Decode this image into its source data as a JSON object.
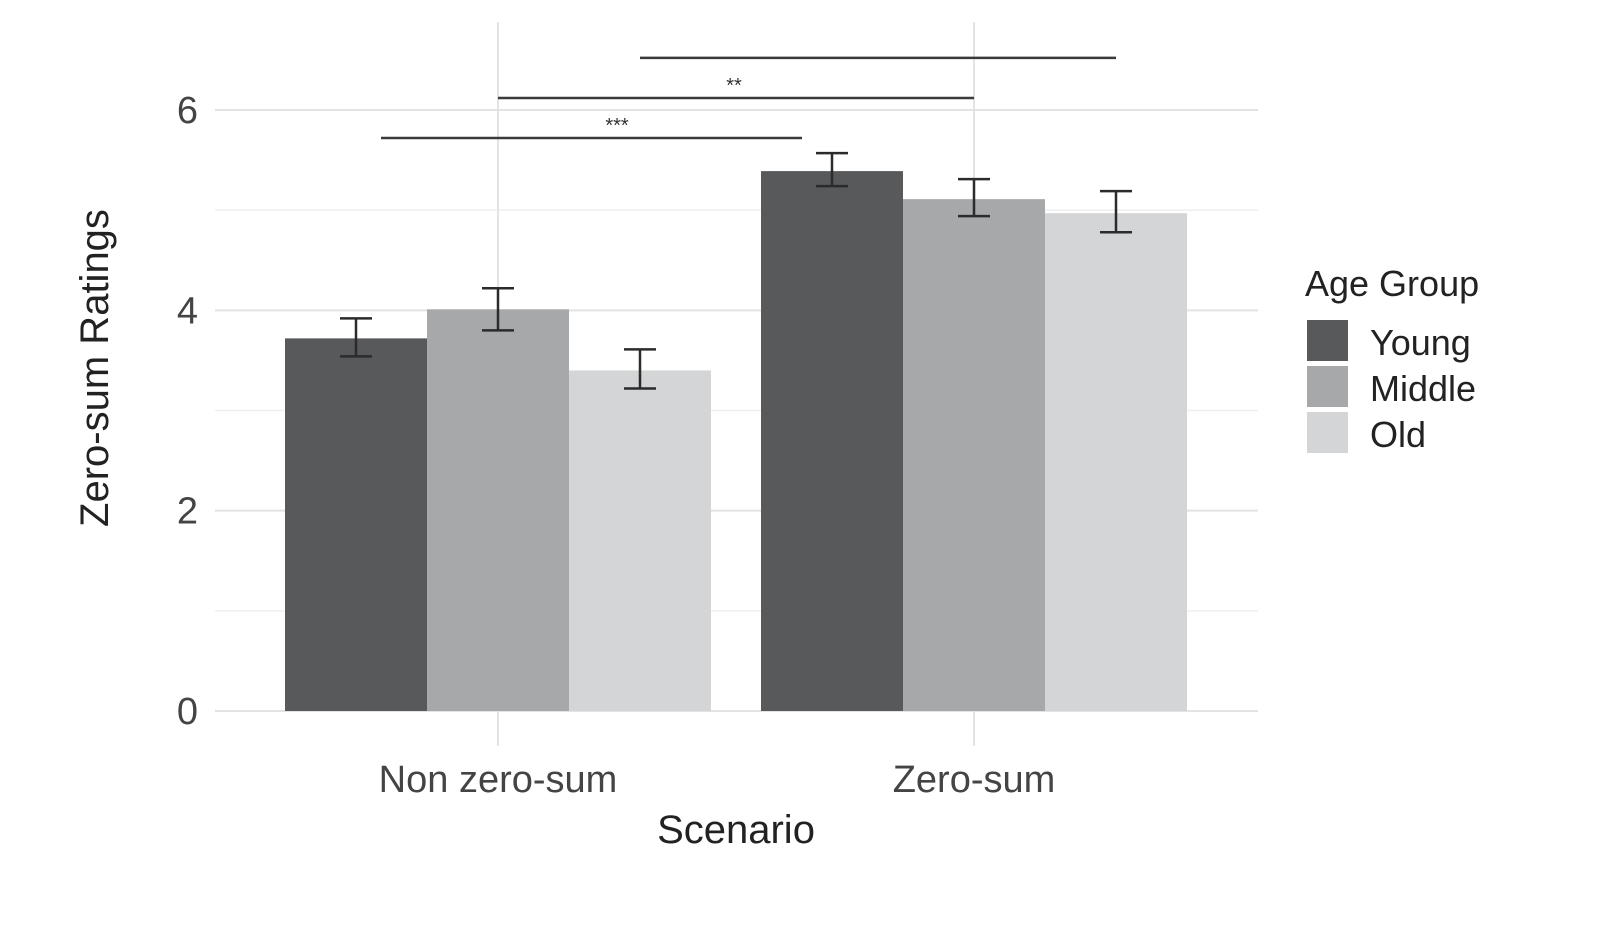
{
  "chart_data": {
    "type": "bar",
    "title": "",
    "xlabel": "Scenario",
    "ylabel": "Zero-sum Ratings",
    "ylim": [
      0,
      6.6
    ],
    "y_ticks": [
      {
        "value": 0,
        "label": "0"
      },
      {
        "value": 2,
        "label": "2"
      },
      {
        "value": 4,
        "label": "4"
      },
      {
        "value": 6,
        "label": "6"
      }
    ],
    "categories": [
      "Non zero-sum",
      "Zero-sum"
    ],
    "series": [
      {
        "name": "Young",
        "color": "#58595b",
        "values": [
          3.72,
          5.39
        ],
        "err_low": [
          3.54,
          5.24
        ],
        "err_high": [
          3.92,
          5.57
        ]
      },
      {
        "name": "Middle",
        "color": "#a7a8aa",
        "values": [
          4.01,
          5.11
        ],
        "err_low": [
          3.8,
          4.94
        ],
        "err_high": [
          4.22,
          5.31
        ]
      },
      {
        "name": "Old",
        "color": "#d4d5d6",
        "values": [
          3.4,
          4.97
        ],
        "err_low": [
          3.22,
          4.78
        ],
        "err_high": [
          3.61,
          5.19
        ]
      }
    ],
    "legend": {
      "title": "Age Group",
      "position": "right"
    },
    "grid": true,
    "significance": [
      {
        "from": "Non zero-sum",
        "to": "Zero-sum",
        "bar": "level-1",
        "label": "***",
        "y": 5.72
      },
      {
        "from": "Non zero-sum",
        "to": "Zero-sum",
        "bar": "level-2",
        "label": "**",
        "y": 6.12
      },
      {
        "from": "Non zero-sum",
        "to": "Zero-sum",
        "bar": "level-3",
        "label": "",
        "y": 6.52
      }
    ]
  }
}
